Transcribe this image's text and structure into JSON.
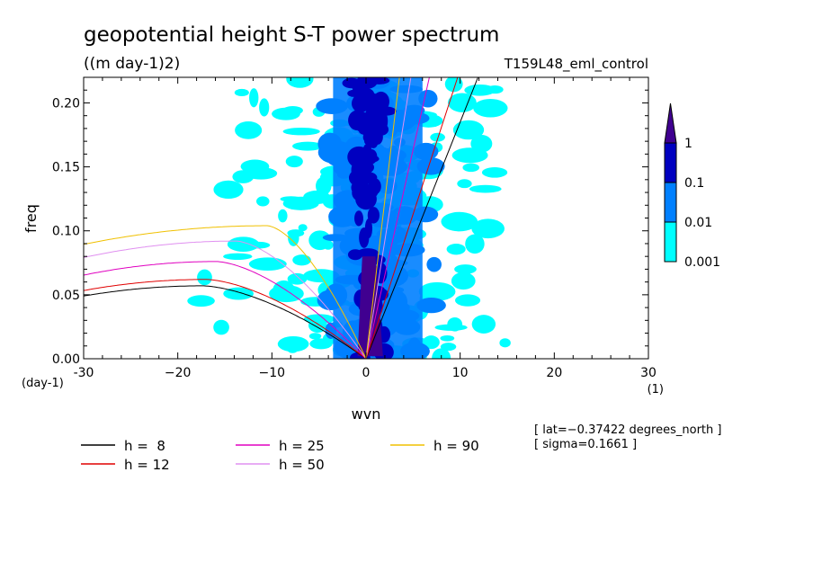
{
  "chart_data": {
    "type": "heatmap",
    "title": "geopotential height S-T power spectrum",
    "units": "((m day-1)2)",
    "run_label": "T159L48_eml_control",
    "xlabel": "wvn",
    "ylabel": "freq",
    "x_units": "(1)",
    "y_units": "(day-1)",
    "xlim": [
      -30,
      30
    ],
    "ylim": [
      0,
      0.22
    ],
    "x_ticks": [
      -30,
      -20,
      -10,
      0,
      10,
      20,
      30
    ],
    "x_tick_labels": [
      "-30",
      "−20",
      "−10",
      "0",
      "10",
      "20",
      "30"
    ],
    "y_ticks": [
      0,
      0.05,
      0.1,
      0.15,
      0.2
    ],
    "y_tick_labels": [
      "0.00",
      "0.05",
      "0.10",
      "0.15",
      "0.20"
    ],
    "colorbar": {
      "levels": [
        0.001,
        0.01,
        0.1,
        1
      ],
      "labels": [
        "0.001",
        "0.01",
        "0.1",
        "1"
      ],
      "colors": [
        "#00ffff",
        "#0080ff",
        "#0000c0",
        "#400090"
      ],
      "extend": "max"
    },
    "power_bands": [
      {
        "level": "1",
        "x_min": -0.6,
        "x_max": 1.5,
        "y_max": 0.08
      },
      {
        "level": "0.1",
        "x_min": -2,
        "x_max": 2.5,
        "y_max": 0.22
      },
      {
        "level": "0.01",
        "x_min": -6,
        "x_max": 8,
        "y_max": 0.22
      },
      {
        "level": "0.001",
        "x_min": -18,
        "x_max": 17,
        "y_max": 0.22
      }
    ],
    "dispersion_curves": [
      {
        "name": "h =  8",
        "h": 8,
        "color": "#000000",
        "kelvin_slope": 0.0185,
        "rossby_peak": 0.057
      },
      {
        "name": "h = 12",
        "h": 12,
        "color": "#e00000",
        "kelvin_slope": 0.0226,
        "rossby_peak": 0.062
      },
      {
        "name": "h = 25",
        "h": 25,
        "color": "#e000c0",
        "kelvin_slope": 0.0327,
        "rossby_peak": 0.076
      },
      {
        "name": "h = 50",
        "h": 50,
        "color": "#e090f0",
        "kelvin_slope": 0.0462,
        "rossby_peak": 0.092
      },
      {
        "name": "h = 90",
        "h": 90,
        "color": "#f0c000",
        "kelvin_slope": 0.062,
        "rossby_peak": 0.104
      }
    ]
  },
  "legend": [
    {
      "label": "h =  8",
      "color": "#000000"
    },
    {
      "label": "h = 12",
      "color": "#e00000"
    },
    {
      "label": "h = 25",
      "color": "#e000c0"
    },
    {
      "label": "h = 50",
      "color": "#e090f0"
    },
    {
      "label": "h = 90",
      "color": "#f0c000"
    }
  ],
  "annotations": {
    "lat": "[ lat=−0.37422 degrees_north ]",
    "sigma": "[ sigma=0.1661 ]"
  }
}
